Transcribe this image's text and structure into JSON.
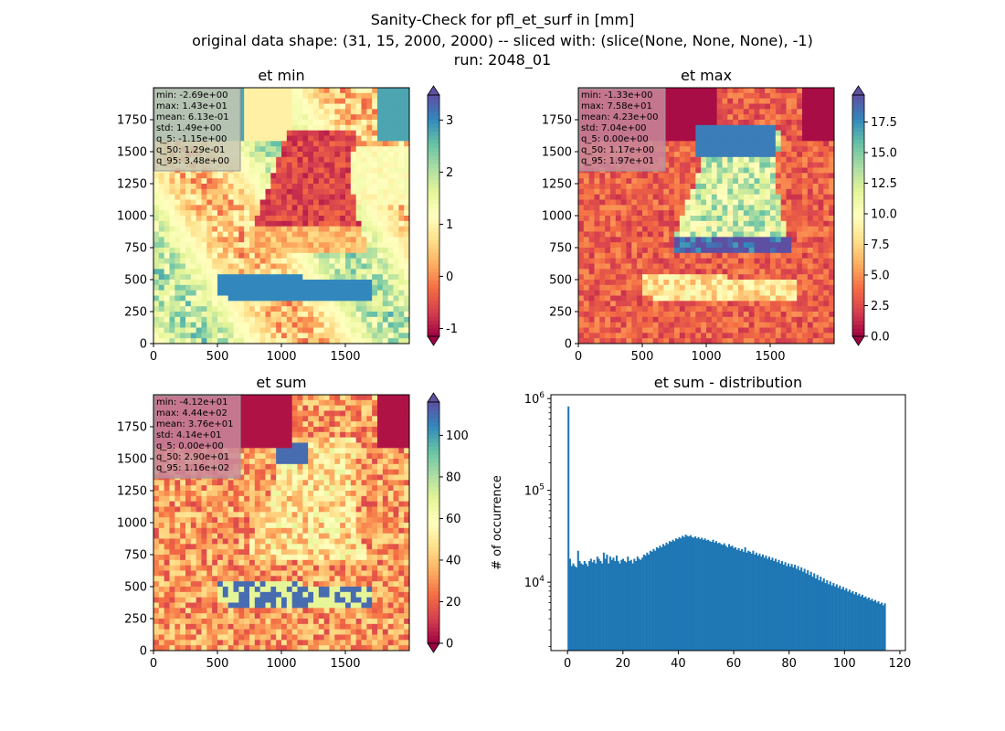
{
  "suptitle": {
    "line1": "Sanity-Check for pfl_et_surf in [mm]",
    "line2": "original data shape: (31, 15, 2000, 2000) -- sliced with: (slice(None, None, None), -1)",
    "line3": "run: 2048_01"
  },
  "colors": {
    "spectral": [
      "#9e0142",
      "#d53e4f",
      "#f46d43",
      "#fdae61",
      "#fee08b",
      "#ffffbf",
      "#e6f598",
      "#abdda4",
      "#66c2a5",
      "#3288bd",
      "#5e4fa2"
    ],
    "under": "#9e0142",
    "over": "#5e4fa2",
    "hist_bar": "#1f77b4",
    "stats_box": "#c0c0c0"
  },
  "chart_data": [
    {
      "type": "heatmap",
      "title": "et min",
      "xlim": [
        0,
        2000
      ],
      "ylim": [
        0,
        2000
      ],
      "xticks": [
        0,
        500,
        1000,
        1500
      ],
      "yticks": [
        0,
        250,
        500,
        750,
        1000,
        1250,
        1500,
        1750
      ],
      "colormap": "Spectral",
      "color_range": [
        -1.15,
        3.48
      ],
      "colorbar_ticks": [
        -1,
        0,
        1,
        2,
        3
      ],
      "colorbar_extend": "both",
      "stats": [
        "min: -2.69e+00",
        "max: 1.43e+01",
        "mean: 6.13e-01",
        "std: 1.49e+00",
        "q_5: -1.15e+00",
        "q_50: 1.29e-01",
        "q_95: 3.48e+00"
      ],
      "stats_box_color": "#c8c8b4"
    },
    {
      "type": "heatmap",
      "title": "et max",
      "xlim": [
        0,
        2000
      ],
      "ylim": [
        0,
        2000
      ],
      "xticks": [
        0,
        500,
        1000,
        1500
      ],
      "yticks": [
        0,
        250,
        500,
        750,
        1000,
        1250,
        1500,
        1750
      ],
      "colormap": "Spectral",
      "color_range": [
        0,
        19.7
      ],
      "colorbar_ticks": [
        0.0,
        2.5,
        5.0,
        7.5,
        10.0,
        12.5,
        15.0,
        17.5
      ],
      "colorbar_extend": "both",
      "stats": [
        "min: -1.33e+00",
        "max: 7.58e+01",
        "mean: 4.23e+00",
        "std: 7.04e+00",
        "q_5: 0.00e+00",
        "q_50: 1.17e+00",
        "q_95: 1.97e+01"
      ],
      "stats_box_color": "#c98a9c"
    },
    {
      "type": "heatmap",
      "title": "et sum",
      "xlim": [
        0,
        2000
      ],
      "ylim": [
        0,
        2000
      ],
      "xticks": [
        0,
        500,
        1000,
        1500
      ],
      "yticks": [
        0,
        250,
        500,
        750,
        1000,
        1250,
        1500,
        1750
      ],
      "colormap": "Spectral",
      "color_range": [
        0,
        116
      ],
      "colorbar_ticks": [
        0,
        20,
        40,
        60,
        80,
        100
      ],
      "colorbar_extend": "both",
      "stats": [
        "min: -4.12e+01",
        "max: 4.44e+02",
        "mean: 3.76e+01",
        "std: 4.14e+01",
        "q_5: 0.00e+00",
        "q_50: 2.90e+01",
        "q_95: 1.16e+02"
      ],
      "stats_box_color": "#c98a9c"
    },
    {
      "type": "bar",
      "title": "et sum - distribution",
      "ylabel": "# of occurrence",
      "xlabel": "",
      "yscale": "log",
      "xlim": [
        -6,
        122
      ],
      "ylim": [
        1800,
        1100000
      ],
      "xticks": [
        0,
        20,
        40,
        60,
        80,
        100,
        120
      ],
      "yticks": [
        {
          "value": 10000,
          "base": "10",
          "exp": "4"
        },
        {
          "value": 100000,
          "base": "10",
          "exp": "5"
        },
        {
          "value": 1000000,
          "base": "10",
          "exp": "6"
        }
      ],
      "bin_start": 0,
      "bin_width": 0.58,
      "values": [
        820000,
        18000,
        15000,
        16000,
        15000,
        14500,
        22000,
        17000,
        16000,
        15500,
        17000,
        16000,
        15000,
        17000,
        18000,
        16500,
        17500,
        16000,
        19000,
        18000,
        17000,
        16000,
        21000,
        18000,
        20000,
        16000,
        19000,
        17500,
        18500,
        17000,
        19500,
        17000,
        16000,
        17500,
        18000,
        17000,
        16500,
        19000,
        17000,
        17500,
        16000,
        18000,
        17000,
        19000,
        18000,
        17500,
        18500,
        20000,
        19500,
        21000,
        20000,
        22000,
        21500,
        23000,
        22000,
        24000,
        23500,
        25000,
        24000,
        26000,
        25000,
        27000,
        26000,
        28000,
        27500,
        29000,
        28000,
        30000,
        29500,
        31000,
        30000,
        32000,
        31000,
        33000,
        32000,
        31500,
        32500,
        31000,
        30500,
        31500,
        30000,
        31000,
        29500,
        30500,
        29000,
        30000,
        28500,
        29000,
        28000,
        27500,
        29000,
        27000,
        28000,
        26500,
        27000,
        26000,
        25500,
        26500,
        25000,
        24000,
        26000,
        24500,
        25000,
        23500,
        24000,
        22500,
        23500,
        22000,
        23000,
        21500,
        24000,
        21000,
        22000,
        21500,
        20500,
        22000,
        20000,
        21000,
        19500,
        20500,
        19000,
        20000,
        18500,
        19500,
        18000,
        19000,
        17500,
        18500,
        17000,
        18000,
        16500,
        17500,
        16000,
        17000,
        15500,
        16500,
        15000,
        16000,
        14800,
        15800,
        14500,
        15500,
        14000,
        15000,
        13500,
        14500,
        13000,
        14000,
        12500,
        13500,
        12000,
        13000,
        11500,
        12500,
        11000,
        12000,
        10500,
        11500,
        10200,
        11000,
        9800,
        10500,
        9500,
        10200,
        9200,
        9800,
        9000,
        9500,
        8700,
        9200,
        8400,
        8900,
        8200,
        8600,
        7900,
        8300,
        7700,
        8000,
        7400,
        7800,
        7200,
        7500,
        7000,
        7300,
        6800,
        7000,
        6600,
        6800,
        6400,
        6600,
        6200,
        6400,
        6000,
        6200,
        5800,
        6000,
        5600,
        5900
      ]
    }
  ]
}
